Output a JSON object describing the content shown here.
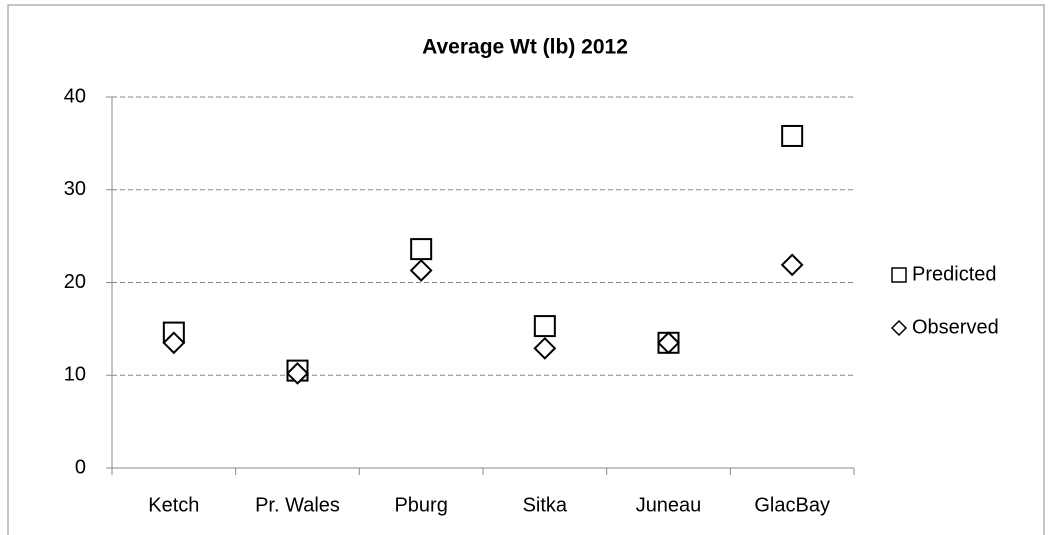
{
  "chart_data": {
    "type": "scatter",
    "title": "Average Wt (lb) 2012",
    "categories": [
      "Ketch",
      "Pr. Wales",
      "Pburg",
      "Sitka",
      "Juneau",
      "GlacBay"
    ],
    "series": [
      {
        "name": "Predicted",
        "color": "#000000",
        "marker": "square",
        "values": [
          14.6,
          10.5,
          23.6,
          15.3,
          13.5,
          35.8
        ]
      },
      {
        "name": "Observed",
        "color": "#000000",
        "marker": "diamond",
        "values": [
          13.5,
          10.2,
          21.3,
          12.9,
          13.5,
          21.9
        ]
      }
    ],
    "ylim": [
      0,
      40
    ],
    "yticks": [
      0,
      10,
      20,
      30,
      40
    ],
    "grid": true,
    "legend": "right"
  }
}
